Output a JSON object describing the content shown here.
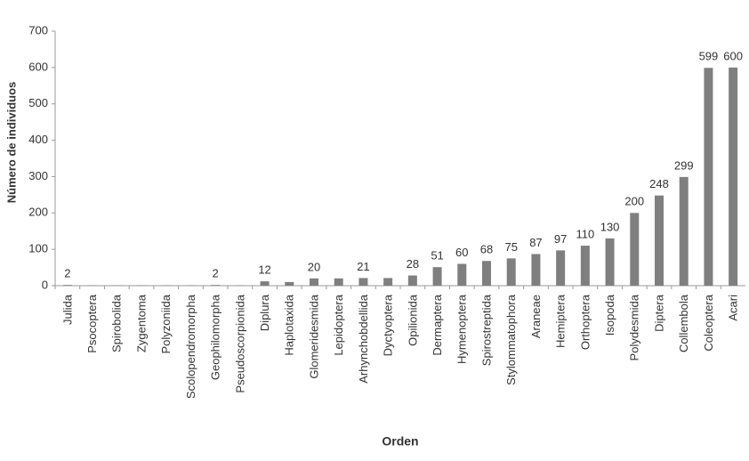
{
  "chart_data": {
    "type": "bar",
    "x_label": "Orden",
    "y_label": "Número de individuos",
    "categories": [
      "Julida",
      "Psocoptera",
      "Spirobolida",
      "Zygentoma",
      "Polyzoniida",
      "Scolopendromorpha",
      "Geophilomorpha",
      "Pseudoscorpionida",
      "Diplura",
      "Haplotaxida",
      "Glomeridesmida",
      "Lepidoptera",
      "Arhynchobdellida",
      "Dyctyoptera",
      "Opilionida",
      "Dermaptera",
      "Hymenoptera",
      "Spirostreptida",
      "Stylommatophora",
      "Araneae",
      "Hemiptera",
      "Orthoptera",
      "Isopoda",
      "Polydesmida",
      "Diptera",
      "Collembola",
      "Coleoptera",
      "Acari"
    ],
    "values": [
      2,
      1,
      1,
      1,
      1,
      1,
      2,
      1,
      12,
      10,
      20,
      20,
      21,
      21,
      28,
      51,
      60,
      68,
      75,
      87,
      97,
      110,
      130,
      200,
      248,
      299,
      599,
      600
    ],
    "value_labels": [
      "2",
      null,
      null,
      null,
      null,
      null,
      "2",
      null,
      "12",
      null,
      "20",
      null,
      "21",
      null,
      "28",
      "51",
      "60",
      "68",
      "75",
      "87",
      "97",
      "110",
      "130",
      "200",
      "248",
      "299",
      "599",
      "600"
    ],
    "color": "#7f7f7f",
    "ylim": [
      0,
      700
    ],
    "yticks": [
      0,
      100,
      200,
      300,
      400,
      500,
      600,
      700
    ]
  }
}
